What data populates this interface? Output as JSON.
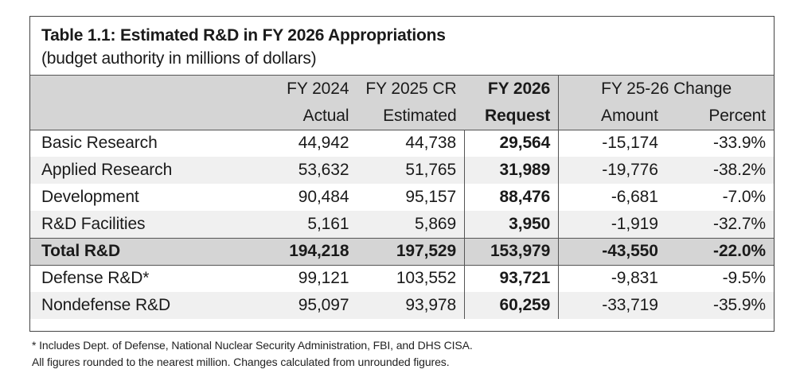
{
  "table": {
    "title": "Table 1.1: Estimated R&D in FY 2026 Appropriations",
    "subtitle": "(budget authority in millions of dollars)",
    "header": {
      "fy2024_line1": "FY 2024",
      "fy2024_line2": "Actual",
      "fy2025_line1": "FY 2025 CR",
      "fy2025_line2": "Estimated",
      "fy2026_line1": "FY 2026",
      "fy2026_line2": "Request",
      "change_group": "FY 25-26 Change",
      "amount": "Amount",
      "percent": "Percent"
    },
    "rows": [
      {
        "label": "Basic Research",
        "fy2024": "44,942",
        "fy2025": "44,738",
        "fy2026": "29,564",
        "amount": "-15,174",
        "percent": "-33.9%"
      },
      {
        "label": "Applied Research",
        "fy2024": "53,632",
        "fy2025": "51,765",
        "fy2026": "31,989",
        "amount": "-19,776",
        "percent": "-38.2%"
      },
      {
        "label": "Development",
        "fy2024": "90,484",
        "fy2025": "95,157",
        "fy2026": "88,476",
        "amount": "-6,681",
        "percent": "-7.0%"
      },
      {
        "label": "R&D Facilities",
        "fy2024": "5,161",
        "fy2025": "5,869",
        "fy2026": "3,950",
        "amount": "-1,919",
        "percent": "-32.7%"
      },
      {
        "label": "Total R&D",
        "fy2024": "194,218",
        "fy2025": "197,529",
        "fy2026": "153,979",
        "amount": "-43,550",
        "percent": "-22.0%"
      },
      {
        "label": "Defense R&D*",
        "fy2024": "99,121",
        "fy2025": "103,552",
        "fy2026": "93,721",
        "amount": "-9,831",
        "percent": "-9.5%"
      },
      {
        "label": "Nondefense R&D",
        "fy2024": "95,097",
        "fy2025": "93,978",
        "fy2026": "60,259",
        "amount": "-33,719",
        "percent": "-35.9%"
      }
    ]
  },
  "footnotes": {
    "line1": "* Includes Dept. of Defense, National Nuclear Security Administration, FBI, and DHS CISA.",
    "line2": "All figures rounded to the nearest million. Changes calculated from unrounded figures."
  },
  "colors": {
    "header_bg": "#d5d5d5",
    "shaded_row_bg": "#f0f0f0",
    "border": "#555555"
  }
}
